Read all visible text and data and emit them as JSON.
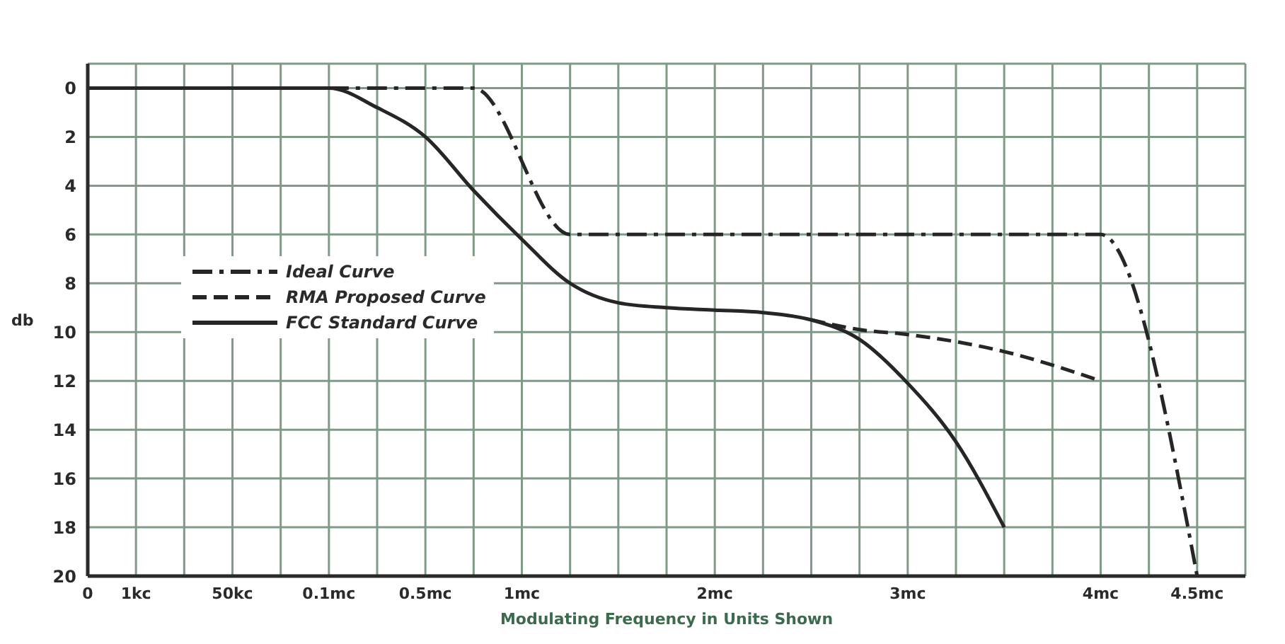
{
  "chart_data": {
    "type": "line",
    "xlabel": "Modulating Frequency in Units Shown",
    "ylabel": "db",
    "categories": [
      "0",
      "1kc",
      null,
      "50kc",
      null,
      "0.1mc",
      null,
      "0.5mc",
      null,
      "1mc",
      null,
      null,
      null,
      "2mc",
      null,
      null,
      null,
      "3mc",
      null,
      null,
      null,
      "4mc",
      null,
      "4.5mc",
      null
    ],
    "ylim": [
      20,
      -1
    ],
    "yticks": [
      0,
      2,
      4,
      6,
      8,
      10,
      12,
      14,
      16,
      18,
      20
    ],
    "grid": true,
    "legend": "left",
    "marker": "none",
    "series": [
      {
        "name": "Ideal Curve",
        "color": "#262626",
        "line_style": "dashdot",
        "values": [
          null,
          null,
          null,
          null,
          null,
          0,
          null,
          null,
          0,
          null,
          6,
          null,
          null,
          null,
          null,
          null,
          null,
          null,
          null,
          null,
          null,
          6,
          null,
          20,
          null
        ]
      },
      {
        "name": "RMA Proposed Curve",
        "color": "#262626",
        "line_style": "dashed",
        "values": [
          null,
          null,
          null,
          null,
          null,
          null,
          null,
          null,
          null,
          null,
          null,
          null,
          null,
          null,
          null,
          9.5,
          9.9,
          10.1,
          null,
          10.8,
          null,
          12,
          null,
          null,
          null
        ]
      },
      {
        "name": "FCC Standard Curve",
        "color": "#262626",
        "line_style": "solid",
        "values": [
          0,
          0,
          0,
          0,
          0,
          0,
          0.8,
          2,
          4.2,
          6.2,
          8,
          8.8,
          9,
          9.1,
          9.2,
          9.5,
          10.3,
          12.1,
          14.5,
          18,
          null,
          null,
          null,
          null,
          null
        ]
      }
    ]
  }
}
